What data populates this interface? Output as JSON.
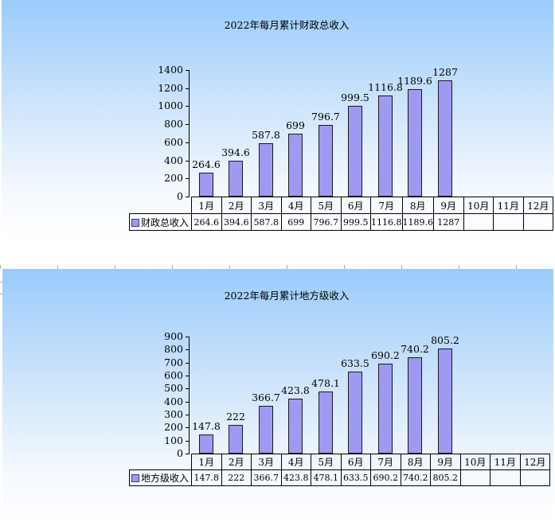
{
  "colors": {
    "panel_top": "#9accfc",
    "bar_fill": "#9e9af2",
    "bar_border": "#1a1a1a",
    "table_line": "#000000",
    "grid_stub": "#adadad"
  },
  "chart_data": [
    {
      "type": "bar",
      "title": "2022年每月累计财政总收入",
      "legend": "财政总收入",
      "categories": [
        "1月",
        "2月",
        "3月",
        "4月",
        "5月",
        "6月",
        "7月",
        "8月",
        "9月",
        "10月",
        "11月",
        "12月"
      ],
      "values": [
        264.6,
        394.6,
        587.8,
        699,
        796.7,
        999.5,
        1116.8,
        1189.6,
        1287,
        null,
        null,
        null
      ],
      "value_labels": [
        "264.6",
        "394.6",
        "587.8",
        "699",
        "796.7",
        "999.5",
        "1116.8",
        "1189.6",
        "1287",
        "",
        "",
        ""
      ],
      "xlabel": "",
      "ylabel": "",
      "ylim": [
        0,
        1400
      ],
      "ytick_step": 200,
      "yticks": [
        "0",
        "200",
        "400",
        "600",
        "800",
        "1000",
        "1200",
        "1400"
      ],
      "grid": false,
      "legend_position": "table-row-left"
    },
    {
      "type": "bar",
      "title": "2022年每月累计地方级收入",
      "legend": "地方级收入",
      "categories": [
        "1月",
        "2月",
        "3月",
        "4月",
        "5月",
        "6月",
        "7月",
        "8月",
        "9月",
        "10月",
        "11月",
        "12月"
      ],
      "values": [
        147.8,
        222,
        366.7,
        423.8,
        478.1,
        633.5,
        690.2,
        740.2,
        805.2,
        null,
        null,
        null
      ],
      "value_labels": [
        "147.8",
        "222",
        "366.7",
        "423.8",
        "478.1",
        "633.5",
        "690.2",
        "740.2",
        "805.2",
        "",
        "",
        ""
      ],
      "xlabel": "",
      "ylabel": "",
      "ylim": [
        0,
        900
      ],
      "ytick_step": 100,
      "yticks": [
        "0",
        "100",
        "200",
        "300",
        "400",
        "500",
        "600",
        "700",
        "800",
        "900"
      ],
      "grid": false,
      "legend_position": "table-row-left"
    }
  ]
}
